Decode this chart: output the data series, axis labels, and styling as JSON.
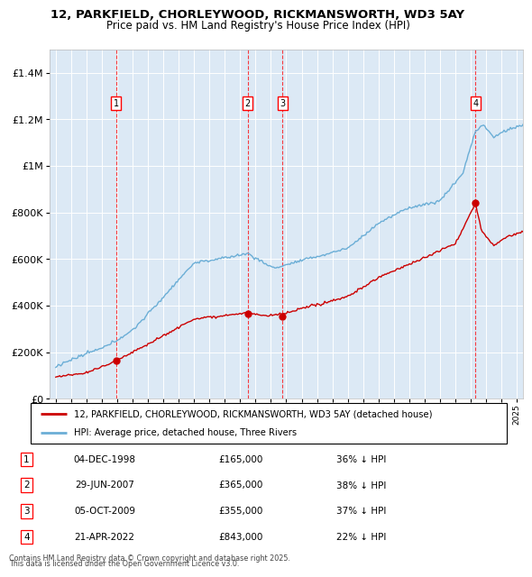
{
  "title": "12, PARKFIELD, CHORLEYWOOD, RICKMANSWORTH, WD3 5AY",
  "subtitle": "Price paid vs. HM Land Registry's House Price Index (HPI)",
  "hpi_color": "#6baed6",
  "price_color": "#cc0000",
  "ylim": [
    0,
    1500000
  ],
  "yticks": [
    0,
    200000,
    400000,
    600000,
    800000,
    1000000,
    1200000,
    1400000
  ],
  "transactions": [
    {
      "num": 1,
      "date": "04-DEC-1998",
      "price": 165000,
      "pct": "36% ↓ HPI",
      "x_year": 1998.92
    },
    {
      "num": 2,
      "date": "29-JUN-2007",
      "price": 365000,
      "pct": "38% ↓ HPI",
      "x_year": 2007.49
    },
    {
      "num": 3,
      "date": "05-OCT-2009",
      "price": 355000,
      "pct": "37% ↓ HPI",
      "x_year": 2009.76
    },
    {
      "num": 4,
      "date": "21-APR-2022",
      "price": 843000,
      "pct": "22% ↓ HPI",
      "x_year": 2022.3
    }
  ],
  "legend_label_price": "12, PARKFIELD, CHORLEYWOOD, RICKMANSWORTH, WD3 5AY (detached house)",
  "legend_label_hpi": "HPI: Average price, detached house, Three Rivers",
  "footnote1": "Contains HM Land Registry data © Crown copyright and database right 2025.",
  "footnote2": "This data is licensed under the Open Government Licence v3.0.",
  "plot_bg": "#dce9f5",
  "xmin": 1994.6,
  "xmax": 2025.4
}
